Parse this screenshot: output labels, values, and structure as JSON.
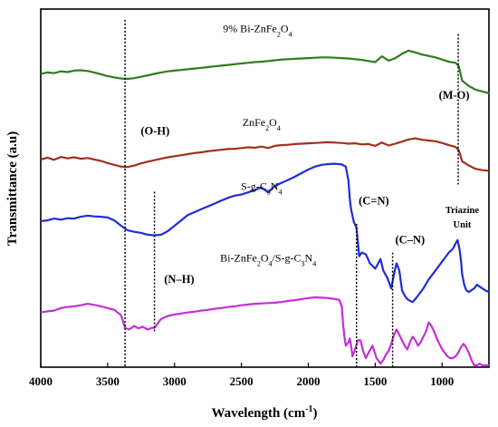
{
  "chart_data": {
    "type": "line",
    "title": "",
    "xlabel": "Wavelength (cm",
    "xlabel_sup": "-1",
    "xlabel_tail": ")",
    "ylabel": "Transmittance (a.u)",
    "xlim": [
      4000,
      650
    ],
    "x_reversed": true,
    "ylim": [
      0,
      100
    ],
    "y_ticks_shown": false,
    "x_ticks": [
      4000,
      3500,
      3000,
      2500,
      2000,
      1500,
      1000
    ],
    "grid": false,
    "legend": "none",
    "series": [
      {
        "name": "9% Bi-ZnFe2O4",
        "label_parts": [
          [
            "9% Bi-ZnFe",
            ""
          ],
          [
            "2",
            "sub"
          ],
          [
            "O",
            ""
          ],
          [
            "4",
            "sub"
          ]
        ],
        "color": "#2e7d1e",
        "x": [
          4000,
          3950,
          3900,
          3850,
          3800,
          3750,
          3700,
          3650,
          3600,
          3550,
          3500,
          3450,
          3400,
          3350,
          3300,
          3250,
          3200,
          3150,
          3100,
          3050,
          3000,
          2950,
          2900,
          2850,
          2800,
          2750,
          2700,
          2650,
          2600,
          2550,
          2500,
          2450,
          2400,
          2350,
          2300,
          2250,
          2200,
          2150,
          2100,
          2050,
          2000,
          1950,
          1900,
          1850,
          1800,
          1750,
          1700,
          1650,
          1600,
          1550,
          1500,
          1450,
          1400,
          1350,
          1300,
          1250,
          1200,
          1150,
          1100,
          1050,
          1000,
          950,
          900,
          875,
          850,
          800,
          750,
          700,
          650
        ],
        "y": [
          81.9,
          82.3,
          82.1,
          82.6,
          82.4,
          82.8,
          82.9,
          82.7,
          82.3,
          81.8,
          81.3,
          80.9,
          80.6,
          80.5,
          80.7,
          81.1,
          81.5,
          81.9,
          82.3,
          82.6,
          82.8,
          83.0,
          83.2,
          83.4,
          83.6,
          83.8,
          84.0,
          84.2,
          84.4,
          84.6,
          84.8,
          85.0,
          85.2,
          85.3,
          85.5,
          85.7,
          85.9,
          86.0,
          86.1,
          86.2,
          86.3,
          86.4,
          86.5,
          86.5,
          86.4,
          86.3,
          86.2,
          86.0,
          85.8,
          85.5,
          85.2,
          86.8,
          85.6,
          86.3,
          87.5,
          88.4,
          87.9,
          87.3,
          86.9,
          86.5,
          85.9,
          85.3,
          85.0,
          84.0,
          80.0,
          78.5,
          77.5,
          77.0,
          76.5
        ]
      },
      {
        "name": "ZnFe2O4",
        "label_parts": [
          [
            "ZnFe",
            ""
          ],
          [
            "2",
            "sub"
          ],
          [
            "O",
            ""
          ],
          [
            "4",
            "sub"
          ]
        ],
        "color": "#a0301c",
        "x": [
          4000,
          3950,
          3900,
          3850,
          3800,
          3750,
          3700,
          3650,
          3600,
          3550,
          3500,
          3450,
          3400,
          3350,
          3300,
          3250,
          3200,
          3150,
          3100,
          3050,
          3000,
          2950,
          2900,
          2850,
          2800,
          2750,
          2700,
          2650,
          2600,
          2550,
          2500,
          2450,
          2400,
          2350,
          2300,
          2250,
          2200,
          2150,
          2100,
          2050,
          2000,
          1950,
          1900,
          1850,
          1800,
          1750,
          1700,
          1650,
          1600,
          1550,
          1500,
          1450,
          1400,
          1350,
          1300,
          1250,
          1200,
          1150,
          1100,
          1050,
          1000,
          950,
          900,
          875,
          850,
          800,
          750,
          700,
          650
        ],
        "y": [
          58.0,
          58.5,
          57.9,
          58.7,
          58.3,
          58.6,
          58.2,
          58.4,
          58.0,
          57.6,
          57.0,
          56.5,
          56.0,
          55.9,
          56.3,
          56.9,
          57.4,
          57.8,
          58.2,
          58.6,
          58.9,
          59.2,
          59.5,
          59.8,
          60.0,
          60.3,
          60.5,
          60.7,
          60.9,
          61.0,
          61.2,
          61.4,
          61.3,
          61.6,
          61.2,
          61.8,
          62.0,
          62.1,
          62.3,
          62.4,
          62.5,
          62.6,
          62.7,
          62.8,
          62.7,
          62.6,
          62.4,
          62.5,
          62.2,
          62.3,
          61.8,
          62.7,
          61.9,
          62.4,
          63.0,
          63.6,
          63.9,
          63.5,
          63.3,
          63.1,
          62.6,
          62.0,
          61.5,
          60.5,
          57.5,
          56.3,
          55.4,
          55.0,
          54.8
        ]
      },
      {
        "name": "S-g-C3N4",
        "label_parts": [
          [
            "S-g-C",
            ""
          ],
          [
            "3",
            "sub"
          ],
          [
            "N",
            ""
          ],
          [
            "4",
            "sub"
          ]
        ],
        "color": "#1f2dd6",
        "x": [
          4000,
          3950,
          3900,
          3850,
          3800,
          3750,
          3700,
          3650,
          3600,
          3550,
          3500,
          3450,
          3400,
          3350,
          3300,
          3250,
          3200,
          3150,
          3100,
          3050,
          3000,
          2950,
          2900,
          2850,
          2800,
          2750,
          2700,
          2650,
          2600,
          2550,
          2500,
          2450,
          2400,
          2350,
          2300,
          2250,
          2200,
          2150,
          2100,
          2050,
          2000,
          1950,
          1900,
          1850,
          1800,
          1750,
          1720,
          1700,
          1690,
          1680,
          1660,
          1640,
          1620,
          1600,
          1570,
          1540,
          1500,
          1460,
          1440,
          1410,
          1380,
          1360,
          1340,
          1320,
          1300,
          1280,
          1260,
          1240,
          1220,
          1200,
          1170,
          1140,
          1100,
          1050,
          1000,
          950,
          920,
          900,
          885,
          870,
          860,
          850,
          835,
          820,
          800,
          780,
          760,
          740,
          720,
          700,
          680,
          650
        ],
        "y": [
          40.8,
          41.0,
          41.5,
          41.2,
          41.6,
          41.5,
          42.0,
          42.3,
          42.1,
          42.0,
          41.8,
          41.0,
          39.5,
          38.2,
          37.8,
          37.5,
          37.0,
          36.8,
          37.0,
          38.0,
          39.5,
          41.0,
          42.5,
          43.3,
          44.1,
          44.9,
          45.7,
          46.5,
          47.3,
          47.9,
          48.2,
          48.8,
          49.5,
          50.2,
          48.8,
          50.6,
          51.5,
          52.3,
          53.2,
          54.2,
          55.2,
          56.0,
          56.5,
          56.7,
          56.8,
          56.6,
          56.0,
          52.0,
          47.0,
          44.0,
          40.5,
          39.0,
          31.0,
          32.0,
          31.5,
          29.0,
          27.5,
          30.2,
          27.0,
          25.0,
          22.0,
          26.0,
          29.0,
          27.0,
          21.5,
          20.0,
          19.0,
          18.5,
          18.2,
          19.0,
          20.5,
          22.0,
          24.5,
          27.0,
          29.5,
          32.0,
          33.0,
          34.5,
          35.5,
          33.0,
          30.0,
          26.0,
          23.0,
          21.5,
          21.0,
          21.5,
          22.0,
          23.0,
          22.5,
          22.0,
          21.5,
          21.0
        ]
      },
      {
        "name": "Bi-ZnFe2O4/S-g-C3N4",
        "label_parts": [
          [
            "Bi-ZnFe",
            ""
          ],
          [
            "2",
            "sub"
          ],
          [
            "O",
            ""
          ],
          [
            "4",
            "sub"
          ],
          [
            "/S-g-C",
            ""
          ],
          [
            "3",
            "sub"
          ],
          [
            "N",
            ""
          ],
          [
            "4",
            "sub"
          ]
        ],
        "color": "#c42fd6",
        "x": [
          4000,
          3950,
          3900,
          3850,
          3800,
          3750,
          3700,
          3650,
          3600,
          3550,
          3500,
          3450,
          3400,
          3370,
          3340,
          3300,
          3270,
          3240,
          3200,
          3170,
          3150,
          3120,
          3100,
          3050,
          3000,
          2950,
          2900,
          2850,
          2800,
          2750,
          2700,
          2650,
          2600,
          2550,
          2500,
          2450,
          2400,
          2350,
          2300,
          2250,
          2200,
          2150,
          2100,
          2050,
          2000,
          1950,
          1900,
          1850,
          1800,
          1770,
          1750,
          1740,
          1730,
          1720,
          1700,
          1690,
          1680,
          1670,
          1650,
          1630,
          1610,
          1590,
          1570,
          1550,
          1520,
          1490,
          1460,
          1440,
          1420,
          1400,
          1380,
          1360,
          1340,
          1320,
          1300,
          1280,
          1260,
          1240,
          1220,
          1200,
          1180,
          1160,
          1140,
          1120,
          1100,
          1080,
          1060,
          1040,
          1020,
          1000,
          980,
          960,
          940,
          920,
          900,
          880,
          860,
          840,
          820,
          800,
          780,
          760,
          740,
          720,
          700,
          680,
          650
        ],
        "y": [
          15.3,
          15.6,
          15.8,
          16.5,
          16.8,
          17.0,
          17.3,
          17.7,
          17.4,
          17.0,
          16.5,
          16.0,
          14.5,
          11.0,
          10.5,
          11.5,
          10.8,
          11.3,
          10.5,
          11.0,
          11.0,
          12.5,
          13.5,
          14.3,
          14.7,
          15.0,
          15.3,
          15.5,
          15.8,
          16.0,
          16.3,
          16.5,
          16.8,
          17.0,
          17.3,
          17.5,
          17.7,
          17.8,
          17.9,
          18.0,
          18.2,
          18.5,
          18.7,
          19.0,
          19.3,
          19.5,
          19.4,
          19.3,
          19.0,
          18.8,
          17.0,
          12.0,
          8.5,
          6.0,
          7.0,
          8.0,
          6.0,
          3.0,
          5.0,
          7.5,
          7.5,
          4.5,
          2.5,
          4.0,
          6.0,
          2.5,
          1.0,
          2.0,
          3.5,
          4.5,
          6.5,
          9.0,
          10.5,
          9.0,
          7.5,
          6.0,
          5.0,
          7.0,
          8.5,
          7.5,
          6.0,
          7.0,
          8.5,
          10.0,
          12.5,
          11.5,
          10.0,
          8.0,
          6.5,
          5.0,
          4.0,
          3.0,
          2.5,
          2.5,
          3.0,
          4.0,
          5.5,
          6.5,
          5.5,
          4.0,
          2.0,
          0.5,
          0.5,
          1.0,
          0.5,
          0.5,
          0.5
        ]
      }
    ],
    "vlines": [
      {
        "x": 3370,
        "y_top": 97,
        "y_bottom": 0
      },
      {
        "x": 3150,
        "y_top": 49,
        "y_bottom": 10
      },
      {
        "x": 1640,
        "y_top": 40,
        "y_bottom": 0
      },
      {
        "x": 1370,
        "y_top": 32,
        "y_bottom": 0
      },
      {
        "x": 880,
        "y_top": 93,
        "y_bottom": 51
      }
    ],
    "annotations": [
      {
        "text": "(O-H)",
        "x": 3145,
        "y": 65,
        "bold": true
      },
      {
        "text": "(N–H)",
        "x": 2965,
        "y": 23.5,
        "bold": true
      },
      {
        "text": "(C=N)",
        "x": 1510,
        "y": 45.5,
        "bold": true
      },
      {
        "text": "(C–N)",
        "x": 1240,
        "y": 34.5,
        "bold": true
      },
      {
        "text": "(M-O)",
        "x": 910,
        "y": 75,
        "bold": true
      },
      {
        "text": "Triazine",
        "x": 850,
        "y": 43,
        "bold": true,
        "small": true
      },
      {
        "text": "Unit",
        "x": 850,
        "y": 39,
        "bold": true,
        "small": true
      }
    ],
    "series_label_pos": [
      {
        "x": 2380,
        "y": 93.5
      },
      {
        "x": 2350,
        "y": 67.3
      },
      {
        "x": 2350,
        "y": 49.5
      },
      {
        "x": 2300,
        "y": 29.5
      }
    ]
  }
}
